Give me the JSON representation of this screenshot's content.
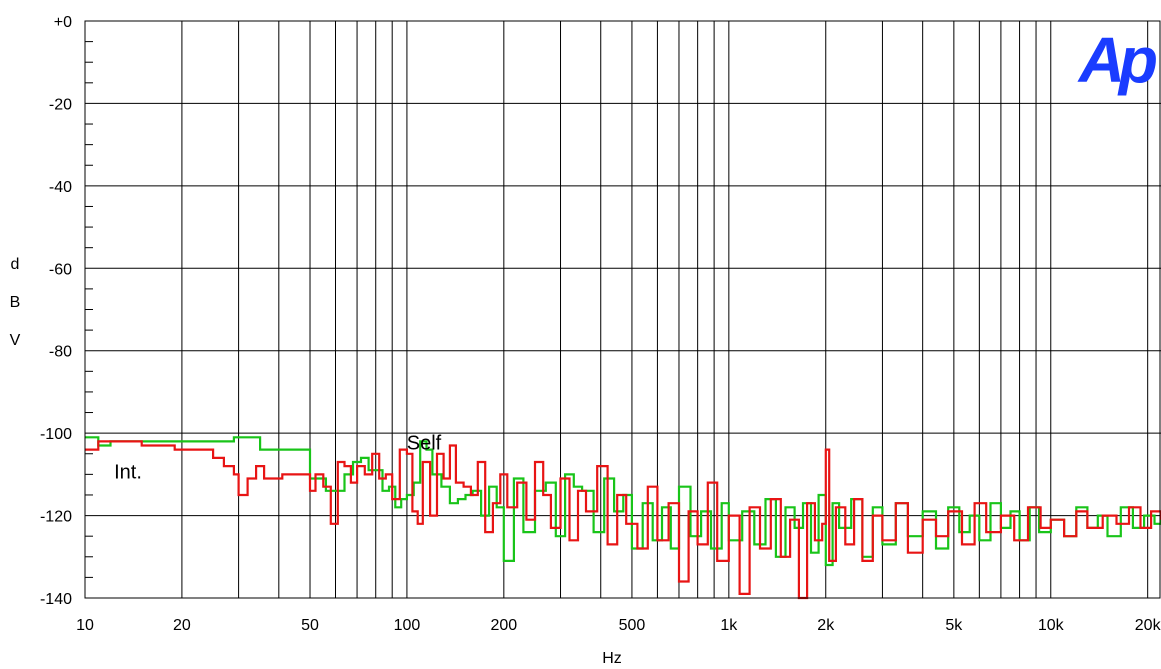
{
  "chart_data": {
    "type": "line",
    "title": "",
    "xlabel": "Hz",
    "ylabel": "dBV",
    "ylabel_letters": [
      "d",
      "B",
      "V"
    ],
    "xscale": "log",
    "xlim": [
      10,
      22000
    ],
    "ylim": [
      -140,
      0
    ],
    "grid": true,
    "x_ticks": [
      10,
      20,
      50,
      100,
      200,
      500,
      1000,
      2000,
      5000,
      10000,
      20000
    ],
    "x_tick_labels": [
      "10",
      "20",
      "50",
      "100",
      "200",
      "500",
      "1k",
      "2k",
      "5k",
      "10k",
      "20k"
    ],
    "y_ticks": [
      0,
      -20,
      -40,
      -60,
      -80,
      -100,
      -120,
      -140
    ],
    "y_tick_labels": [
      "+0",
      "-20",
      "-40",
      "-60",
      "-80",
      "-100",
      "-120",
      "-140"
    ],
    "logo": "Ap",
    "annotations": [
      {
        "text": "Self",
        "x": 113,
        "y": -104
      },
      {
        "text": "Int.",
        "x": 13.6,
        "y": -111
      }
    ],
    "series": [
      {
        "color": "#19c419",
        "x": [
          10,
          11,
          12,
          13,
          15,
          17,
          19,
          21,
          23,
          25,
          27,
          29,
          31,
          33,
          35,
          38,
          41,
          44,
          47,
          50,
          53,
          56,
          60,
          64,
          68,
          72,
          76,
          80,
          84,
          88,
          92,
          96,
          100,
          105,
          110,
          115,
          120,
          128,
          136,
          144,
          152,
          160,
          170,
          180,
          190,
          200,
          215,
          230,
          250,
          270,
          290,
          310,
          330,
          350,
          380,
          410,
          440,
          470,
          500,
          540,
          580,
          620,
          660,
          700,
          760,
          820,
          880,
          950,
          1000,
          1100,
          1200,
          1300,
          1400,
          1500,
          1600,
          1700,
          1800,
          1900,
          2000,
          2100,
          2200,
          2400,
          2600,
          2800,
          3000,
          3300,
          3600,
          4000,
          4400,
          4800,
          5200,
          5600,
          6000,
          6500,
          7000,
          7500,
          8000,
          8600,
          9200,
          10000,
          11000,
          12000,
          13000,
          14000,
          15000,
          16500,
          18000,
          19500,
          21000,
          22000
        ],
        "y": [
          -101,
          -103,
          -102,
          -102,
          -102,
          -102,
          -102,
          -102,
          -102,
          -102,
          -102,
          -101,
          -101,
          -101,
          -104,
          -104,
          -104,
          -104,
          -104,
          -111,
          -111,
          -114,
          -114,
          -110,
          -107,
          -106,
          -109,
          -109,
          -114,
          -113,
          -118,
          -116,
          -115,
          -112,
          -102,
          -104,
          -110,
          -113,
          -117,
          -116,
          -115,
          -114,
          -120,
          -113,
          -118,
          -131,
          -111,
          -124,
          -114,
          -112,
          -125,
          -110,
          -113,
          -114,
          -124,
          -111,
          -119,
          -115,
          -128,
          -117,
          -126,
          -118,
          -128,
          -113,
          -125,
          -119,
          -128,
          -117,
          -126,
          -119,
          -127,
          -116,
          -130,
          -118,
          -123,
          -117,
          -129,
          -115,
          -132,
          -117,
          -123,
          -116,
          -130,
          -118,
          -127,
          -117,
          -125,
          -119,
          -128,
          -118,
          -124,
          -120,
          -126,
          -117,
          -123,
          -119,
          -126,
          -118,
          -124,
          -121,
          -125,
          -118,
          -123,
          -120,
          -125,
          -118,
          -123,
          -120,
          -122,
          -120
        ]
      },
      {
        "color": "#e81414",
        "x": [
          10,
          11,
          13,
          15,
          17,
          19,
          21,
          23,
          25,
          27,
          29,
          30,
          32,
          34,
          36,
          38,
          41,
          44,
          47,
          50,
          52,
          55,
          58,
          61,
          64,
          67,
          70,
          74,
          78,
          82,
          86,
          90,
          95,
          100,
          104,
          108,
          112,
          118,
          124,
          130,
          136,
          142,
          150,
          158,
          166,
          175,
          185,
          195,
          205,
          220,
          235,
          250,
          265,
          280,
          300,
          320,
          340,
          360,
          390,
          420,
          450,
          480,
          520,
          560,
          600,
          650,
          700,
          750,
          800,
          860,
          920,
          1000,
          1080,
          1160,
          1250,
          1350,
          1450,
          1550,
          1650,
          1750,
          1850,
          1950,
          2000,
          2050,
          2150,
          2300,
          2450,
          2600,
          2800,
          3000,
          3300,
          3600,
          4000,
          4400,
          4800,
          5300,
          5800,
          6300,
          7000,
          7700,
          8500,
          9300,
          10000,
          11000,
          12000,
          13000,
          14500,
          16000,
          17500,
          19000,
          20500,
          22000
        ],
        "y": [
          -104,
          -102,
          -102,
          -103,
          -103,
          -104,
          -104,
          -104,
          -106,
          -108,
          -110,
          -115,
          -111,
          -108,
          -111,
          -111,
          -110,
          -110,
          -110,
          -114,
          -110,
          -113,
          -122,
          -107,
          -108,
          -112,
          -108,
          -110,
          -105,
          -111,
          -110,
          -116,
          -104,
          -105,
          -119,
          -122,
          -107,
          -120,
          -105,
          -111,
          -103,
          -112,
          -113,
          -115,
          -107,
          -124,
          -117,
          -110,
          -118,
          -112,
          -121,
          -107,
          -115,
          -123,
          -111,
          -126,
          -114,
          -119,
          -108,
          -127,
          -115,
          -122,
          -128,
          -113,
          -126,
          -117,
          -136,
          -119,
          -127,
          -112,
          -131,
          -120,
          -139,
          -118,
          -128,
          -116,
          -130,
          -121,
          -140,
          -117,
          -126,
          -122,
          -104,
          -131,
          -118,
          -127,
          -116,
          -131,
          -120,
          -126,
          -117,
          -129,
          -121,
          -125,
          -119,
          -127,
          -117,
          -124,
          -120,
          -126,
          -118,
          -123,
          -121,
          -125,
          -119,
          -123,
          -120,
          -122,
          -118,
          -123,
          -119,
          -121
        ]
      }
    ]
  }
}
